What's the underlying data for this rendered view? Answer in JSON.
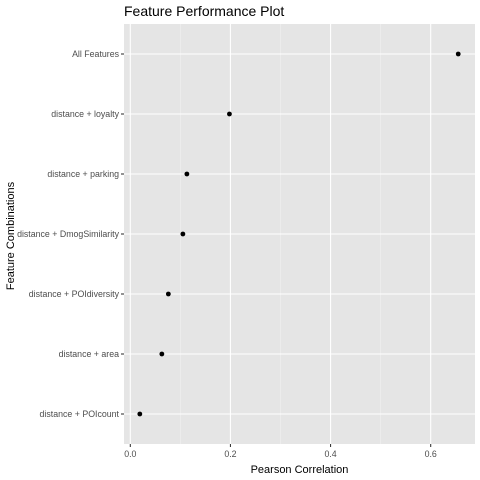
{
  "chart_data": {
    "type": "scatter",
    "title": "Feature Performance Plot",
    "xlabel": "Pearson Correlation",
    "ylabel": "Feature Combinations",
    "xlim": [
      -0.0126,
      0.6885
    ],
    "x_ticks": [
      0.0,
      0.2,
      0.4,
      0.6
    ],
    "x_tick_labels": [
      "0.0",
      "0.2",
      "0.4",
      "0.6"
    ],
    "categories": [
      "distance + POIcount",
      "distance + area",
      "distance + POIdiversity",
      "distance + DmogSimilarity",
      "distance + parking",
      "distance + loyalty",
      "All Features"
    ],
    "values": [
      0.019,
      0.063,
      0.076,
      0.105,
      0.113,
      0.198,
      0.655
    ],
    "grid": true,
    "legend": "none",
    "colors": {
      "panel_background": "#e5e5e5",
      "grid_major": "#ffffff",
      "grid_minor": "#f2f2f2",
      "point": "#000000",
      "tick_mark": "#333333",
      "tick_text": "#4d4d4d"
    }
  }
}
